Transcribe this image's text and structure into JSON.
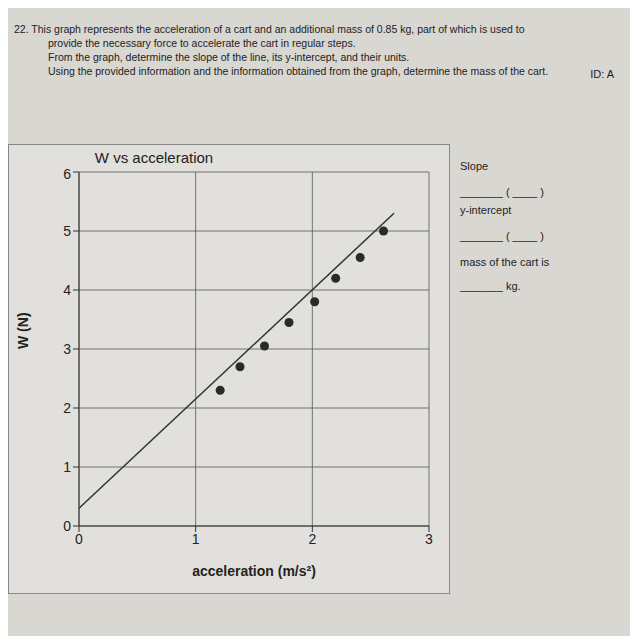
{
  "chart_data": {
    "type": "scatter",
    "title": "W vs acceleration",
    "x_label": "acceleration (m/s²)",
    "y_label": "W (N)",
    "xlim": [
      0,
      3
    ],
    "xticks": [
      0,
      1,
      2,
      3
    ],
    "ylim": [
      0,
      6
    ],
    "yticks": [
      0,
      1,
      2,
      3,
      4,
      5,
      6
    ],
    "grid": true,
    "series": [
      {
        "type": "scatter",
        "marker": "circle",
        "color": "#2a2a2a",
        "x": [
          1.21,
          1.38,
          1.59,
          1.8,
          2.02,
          2.2,
          2.41,
          2.61
        ],
        "values": [
          2.3,
          2.7,
          3.05,
          3.45,
          3.8,
          4.2,
          4.55,
          5.0
        ]
      },
      {
        "type": "line",
        "line_style": "solid",
        "color": "#333333",
        "x": [
          0,
          2.7
        ],
        "values": [
          0.3,
          5.3
        ]
      }
    ],
    "annotations": {
      "question": [
        "22. This graph represents the acceleration of a cart and an additional mass of 0.85 kg, part of which is used to",
        "provide the necessary force to accelerate the cart in regular steps.",
        "From the graph, determine the slope of the line, its y-intercept, and their units.",
        "Using the provided information and the information obtained from the graph, determine the mass of the cart."
      ],
      "id": "ID: A",
      "slope": "Slope",
      "slope_blank": "_______ ( ____ )",
      "intercept": "y-intercept",
      "intercept_blank": "_______ ( ____ )",
      "mass": "mass of the cart is",
      "mass_blank": "_______ kg."
    }
  }
}
